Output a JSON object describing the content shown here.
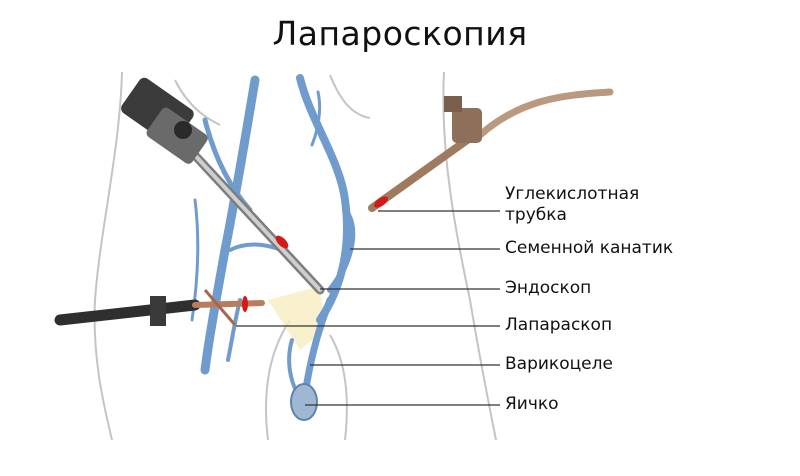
{
  "title": "Лапароскопия",
  "labels": {
    "co2_tube_line1": "Углекислотная",
    "co2_tube_line2": "трубка",
    "spermatic_cord": "Семенной канатик",
    "endoscope": "Эндоскоп",
    "laparoscope": "Лапараскоп",
    "varicocele": "Варикоцеле",
    "testicle": "Яичко"
  },
  "colors": {
    "vessels": "#6f9ccd",
    "outline": "#bdbdbd",
    "tube": "#c08060",
    "ring": "#d11b1b"
  }
}
